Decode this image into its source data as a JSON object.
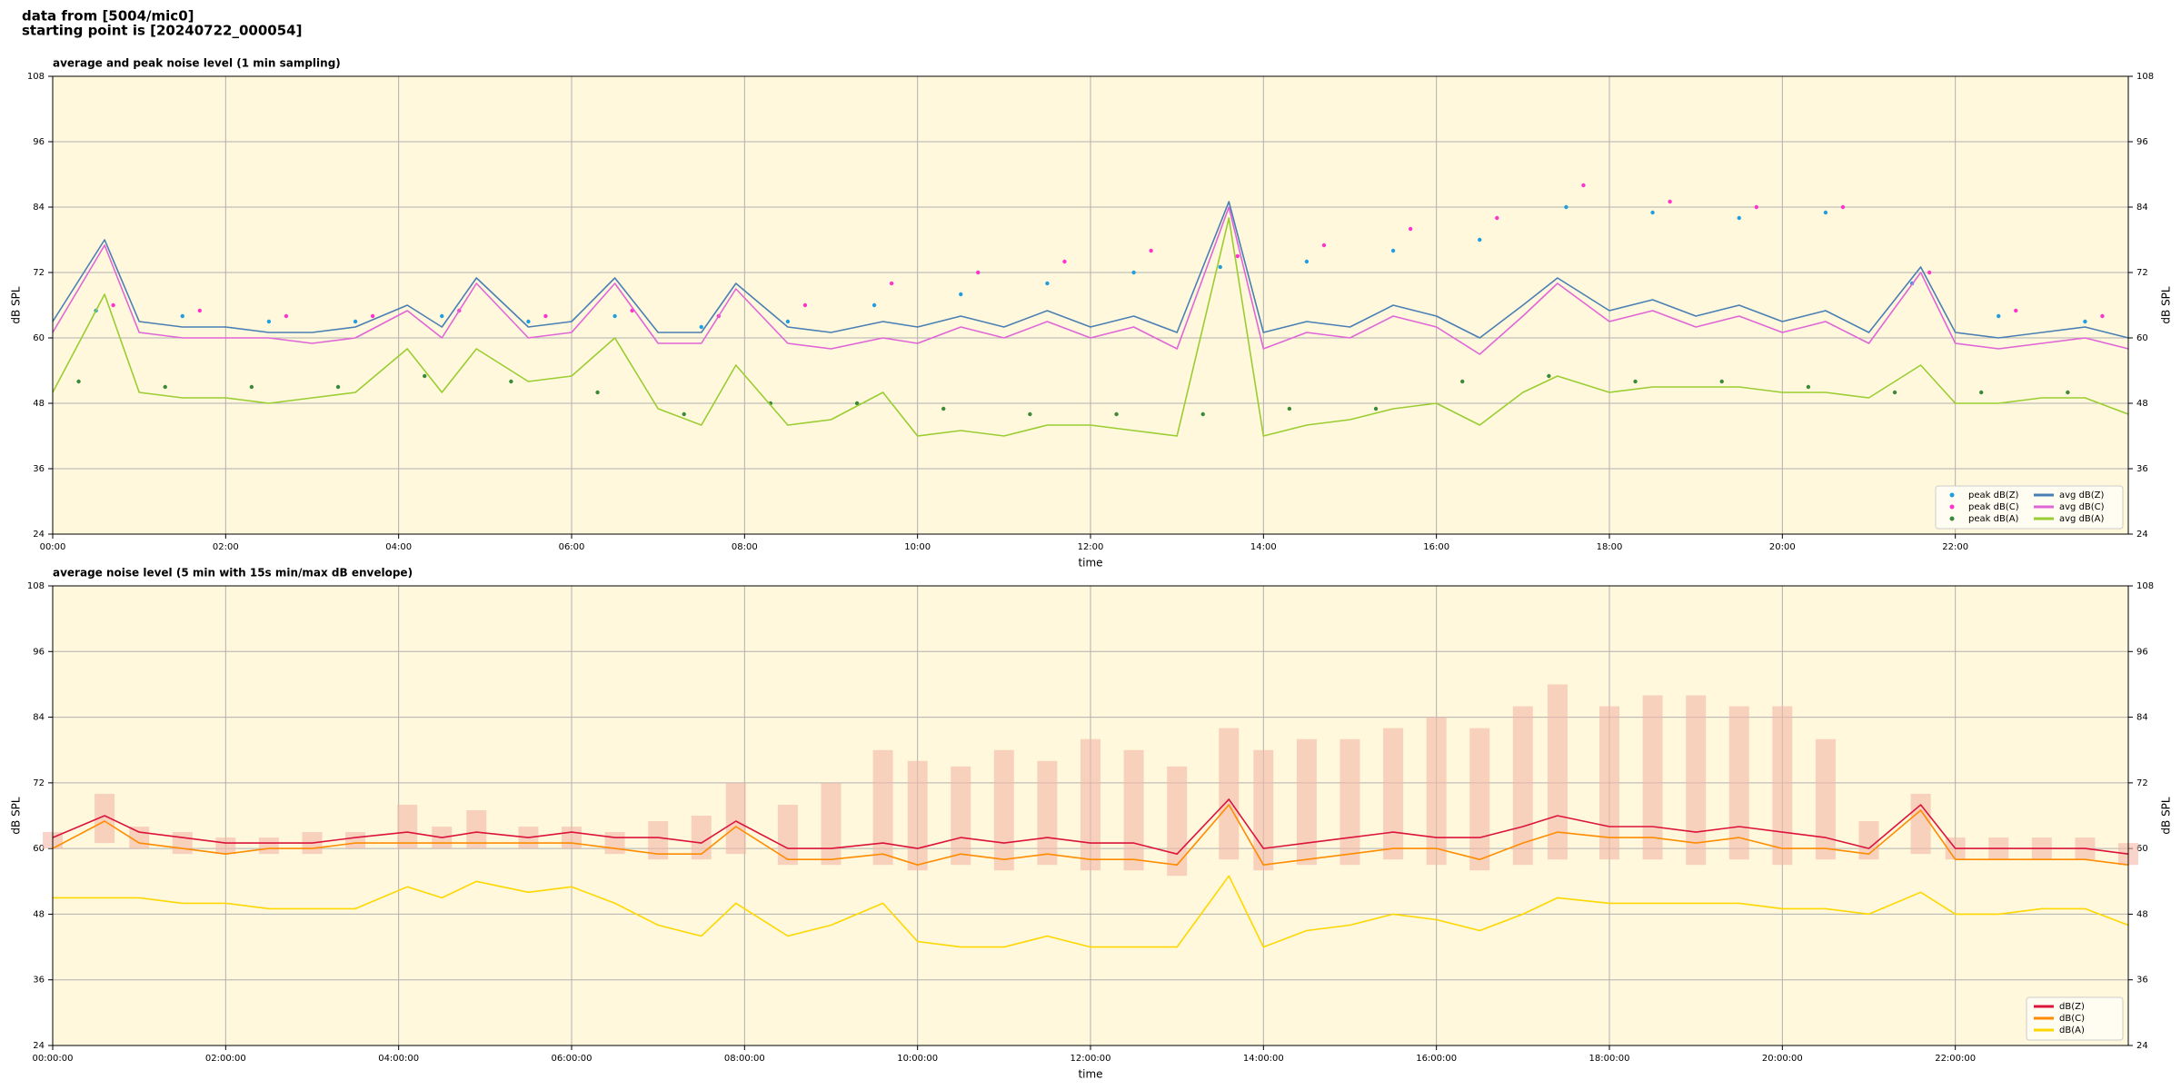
{
  "header": {
    "line1": "data from [5004/mic0]",
    "line2": "starting point is [20240722_000054]"
  },
  "chart_data": [
    {
      "type": "line",
      "title": "average and peak noise level (1 min sampling)",
      "xlabel": "time",
      "ylabel": "dB SPL",
      "x": [
        0,
        0.6,
        1,
        1.5,
        2,
        2.5,
        3,
        3.5,
        4.1,
        4.5,
        4.9,
        5.5,
        6,
        6.5,
        7,
        7.5,
        7.9,
        8.5,
        9,
        9.6,
        10,
        10.5,
        11,
        11.5,
        12,
        12.5,
        13,
        13.6,
        14,
        14.5,
        15,
        15.5,
        16,
        16.5,
        17,
        17.4,
        18,
        18.5,
        19,
        19.5,
        20,
        20.5,
        21,
        21.6,
        22,
        22.5,
        23,
        23.5,
        24
      ],
      "xlim": [
        0,
        24
      ],
      "xticks": [
        {
          "value": 0,
          "label": "00:00"
        },
        {
          "value": 2,
          "label": "02:00"
        },
        {
          "value": 4,
          "label": "04:00"
        },
        {
          "value": 6,
          "label": "06:00"
        },
        {
          "value": 8,
          "label": "08:00"
        },
        {
          "value": 10,
          "label": "10:00"
        },
        {
          "value": 12,
          "label": "12:00"
        },
        {
          "value": 14,
          "label": "14:00"
        },
        {
          "value": 16,
          "label": "16:00"
        },
        {
          "value": 18,
          "label": "18:00"
        },
        {
          "value": 20,
          "label": "20:00"
        },
        {
          "value": 22,
          "label": "22:00"
        }
      ],
      "ylim": [
        24,
        108
      ],
      "yticks": [
        24,
        36,
        48,
        60,
        72,
        84,
        96,
        108
      ],
      "grid": true,
      "legend": "lower right",
      "legend_ncol": 2,
      "series": [
        {
          "name": "peak dB(Z)",
          "style": "scatter",
          "color": "#1f9ee0",
          "x": [
            0.5,
            1.5,
            2.5,
            3.5,
            4.5,
            5.5,
            6.5,
            7.5,
            8.5,
            9.5,
            10.5,
            11.5,
            12.5,
            13.5,
            14.5,
            15.5,
            16.5,
            17.5,
            18.5,
            19.5,
            20.5,
            21.5,
            22.5,
            23.5
          ],
          "values": [
            65,
            64,
            63,
            63,
            64,
            63,
            64,
            62,
            63,
            66,
            68,
            70,
            72,
            73,
            74,
            76,
            78,
            84,
            83,
            82,
            83,
            70,
            64,
            63
          ]
        },
        {
          "name": "peak dB(C)",
          "style": "scatter",
          "color": "#ff33cc",
          "x": [
            0.7,
            1.7,
            2.7,
            3.7,
            4.7,
            5.7,
            6.7,
            7.7,
            8.7,
            9.7,
            10.7,
            11.7,
            12.7,
            13.7,
            14.7,
            15.7,
            16.7,
            17.7,
            18.7,
            19.7,
            20.7,
            21.7,
            22.7,
            23.7
          ],
          "values": [
            66,
            65,
            64,
            64,
            65,
            64,
            65,
            64,
            66,
            70,
            72,
            74,
            76,
            75,
            77,
            80,
            82,
            88,
            85,
            84,
            84,
            72,
            65,
            64
          ]
        },
        {
          "name": "peak dB(A)",
          "style": "scatter",
          "color": "#3a8a3a",
          "x": [
            0.3,
            1.3,
            2.3,
            3.3,
            4.3,
            5.3,
            6.3,
            7.3,
            8.3,
            9.3,
            10.3,
            11.3,
            12.3,
            13.3,
            14.3,
            15.3,
            16.3,
            17.3,
            18.3,
            19.3,
            20.3,
            21.3,
            22.3,
            23.3
          ],
          "values": [
            52,
            51,
            51,
            51,
            53,
            52,
            50,
            46,
            48,
            48,
            47,
            46,
            46,
            46,
            47,
            47,
            52,
            53,
            52,
            52,
            51,
            50,
            50,
            50
          ]
        },
        {
          "name": "avg dB(Z)",
          "style": "line",
          "color": "#4a7fb5",
          "values": [
            63,
            78,
            63,
            62,
            62,
            61,
            61,
            62,
            66,
            62,
            71,
            62,
            63,
            71,
            61,
            61,
            70,
            62,
            61,
            63,
            62,
            64,
            62,
            65,
            62,
            64,
            61,
            85,
            61,
            63,
            62,
            66,
            64,
            60,
            66,
            71,
            65,
            67,
            64,
            66,
            63,
            65,
            61,
            73,
            61,
            60,
            61,
            62,
            60
          ]
        },
        {
          "name": "avg dB(C)",
          "style": "line",
          "color": "#e066d8",
          "values": [
            61,
            77,
            61,
            60,
            60,
            60,
            59,
            60,
            65,
            60,
            70,
            60,
            61,
            70,
            59,
            59,
            69,
            59,
            58,
            60,
            59,
            62,
            60,
            63,
            60,
            62,
            58,
            84,
            58,
            61,
            60,
            64,
            62,
            57,
            64,
            70,
            63,
            65,
            62,
            64,
            61,
            63,
            59,
            72,
            59,
            58,
            59,
            60,
            58
          ]
        },
        {
          "name": "avg dB(A)",
          "style": "line",
          "color": "#9acd32",
          "values": [
            50,
            68,
            50,
            49,
            49,
            48,
            49,
            50,
            58,
            50,
            58,
            52,
            53,
            60,
            47,
            44,
            55,
            44,
            45,
            50,
            42,
            43,
            42,
            44,
            44,
            43,
            42,
            82,
            42,
            44,
            45,
            47,
            48,
            44,
            50,
            53,
            50,
            51,
            51,
            51,
            50,
            50,
            49,
            55,
            48,
            48,
            49,
            49,
            46
          ]
        }
      ]
    },
    {
      "type": "line",
      "title": "average noise level (5 min with 15s min/max dB envelope)",
      "xlabel": "time",
      "ylabel": "dB SPL",
      "x": [
        0,
        0.6,
        1,
        1.5,
        2,
        2.5,
        3,
        3.5,
        4.1,
        4.5,
        4.9,
        5.5,
        6,
        6.5,
        7,
        7.5,
        7.9,
        8.5,
        9,
        9.6,
        10,
        10.5,
        11,
        11.5,
        12,
        12.5,
        13,
        13.6,
        14,
        14.5,
        15,
        15.5,
        16,
        16.5,
        17,
        17.4,
        18,
        18.5,
        19,
        19.5,
        20,
        20.5,
        21,
        21.6,
        22,
        22.5,
        23,
        23.5,
        24
      ],
      "xlim": [
        0,
        24
      ],
      "xticks": [
        {
          "value": 0,
          "label": "00:00:00"
        },
        {
          "value": 2,
          "label": "02:00:00"
        },
        {
          "value": 4,
          "label": "04:00:00"
        },
        {
          "value": 6,
          "label": "06:00:00"
        },
        {
          "value": 8,
          "label": "08:00:00"
        },
        {
          "value": 10,
          "label": "10:00:00"
        },
        {
          "value": 12,
          "label": "12:00:00"
        },
        {
          "value": 14,
          "label": "14:00:00"
        },
        {
          "value": 16,
          "label": "16:00:00"
        },
        {
          "value": 18,
          "label": "18:00:00"
        },
        {
          "value": 20,
          "label": "20:00:00"
        },
        {
          "value": 22,
          "label": "22:00:00"
        }
      ],
      "ylim": [
        24,
        108
      ],
      "yticks": [
        24,
        36,
        48,
        60,
        72,
        84,
        96,
        108
      ],
      "grid": true,
      "legend": "lower right",
      "legend_ncol": 1,
      "envelope": {
        "color": "#f4b8a8",
        "min": [
          60,
          61,
          60,
          59,
          59,
          59,
          59,
          60,
          60,
          60,
          60,
          60,
          60,
          59,
          58,
          58,
          59,
          57,
          57,
          57,
          56,
          57,
          56,
          57,
          56,
          56,
          55,
          58,
          56,
          57,
          57,
          58,
          57,
          56,
          57,
          58,
          58,
          58,
          57,
          58,
          57,
          58,
          58,
          59,
          58,
          58,
          58,
          58,
          57
        ],
        "max": [
          63,
          70,
          64,
          63,
          62,
          62,
          63,
          63,
          68,
          64,
          67,
          64,
          64,
          63,
          65,
          66,
          72,
          68,
          72,
          78,
          76,
          75,
          78,
          76,
          80,
          78,
          75,
          82,
          78,
          80,
          80,
          82,
          84,
          82,
          86,
          90,
          86,
          88,
          88,
          86,
          86,
          80,
          65,
          70,
          62,
          62,
          62,
          62,
          61
        ]
      },
      "series": [
        {
          "name": "dB(Z)",
          "style": "line",
          "color": "#dc143c",
          "values": [
            62,
            66,
            63,
            62,
            61,
            61,
            61,
            62,
            63,
            62,
            63,
            62,
            63,
            62,
            62,
            61,
            65,
            60,
            60,
            61,
            60,
            62,
            61,
            62,
            61,
            61,
            59,
            69,
            60,
            61,
            62,
            63,
            62,
            62,
            64,
            66,
            64,
            64,
            63,
            64,
            63,
            62,
            60,
            68,
            60,
            60,
            60,
            60,
            59
          ]
        },
        {
          "name": "dB(C)",
          "style": "line",
          "color": "#ff8c00",
          "values": [
            60,
            65,
            61,
            60,
            59,
            60,
            60,
            61,
            61,
            61,
            61,
            61,
            61,
            60,
            59,
            59,
            64,
            58,
            58,
            59,
            57,
            59,
            58,
            59,
            58,
            58,
            57,
            68,
            57,
            58,
            59,
            60,
            60,
            58,
            61,
            63,
            62,
            62,
            61,
            62,
            60,
            60,
            59,
            67,
            58,
            58,
            58,
            58,
            57
          ]
        },
        {
          "name": "dB(A)",
          "style": "line",
          "color": "#ffd700",
          "values": [
            51,
            51,
            51,
            50,
            50,
            49,
            49,
            49,
            53,
            51,
            54,
            52,
            53,
            50,
            46,
            44,
            50,
            44,
            46,
            50,
            43,
            42,
            42,
            44,
            42,
            42,
            42,
            55,
            42,
            45,
            46,
            48,
            47,
            45,
            48,
            51,
            50,
            50,
            50,
            50,
            49,
            49,
            48,
            52,
            48,
            48,
            49,
            49,
            46
          ]
        }
      ]
    }
  ]
}
